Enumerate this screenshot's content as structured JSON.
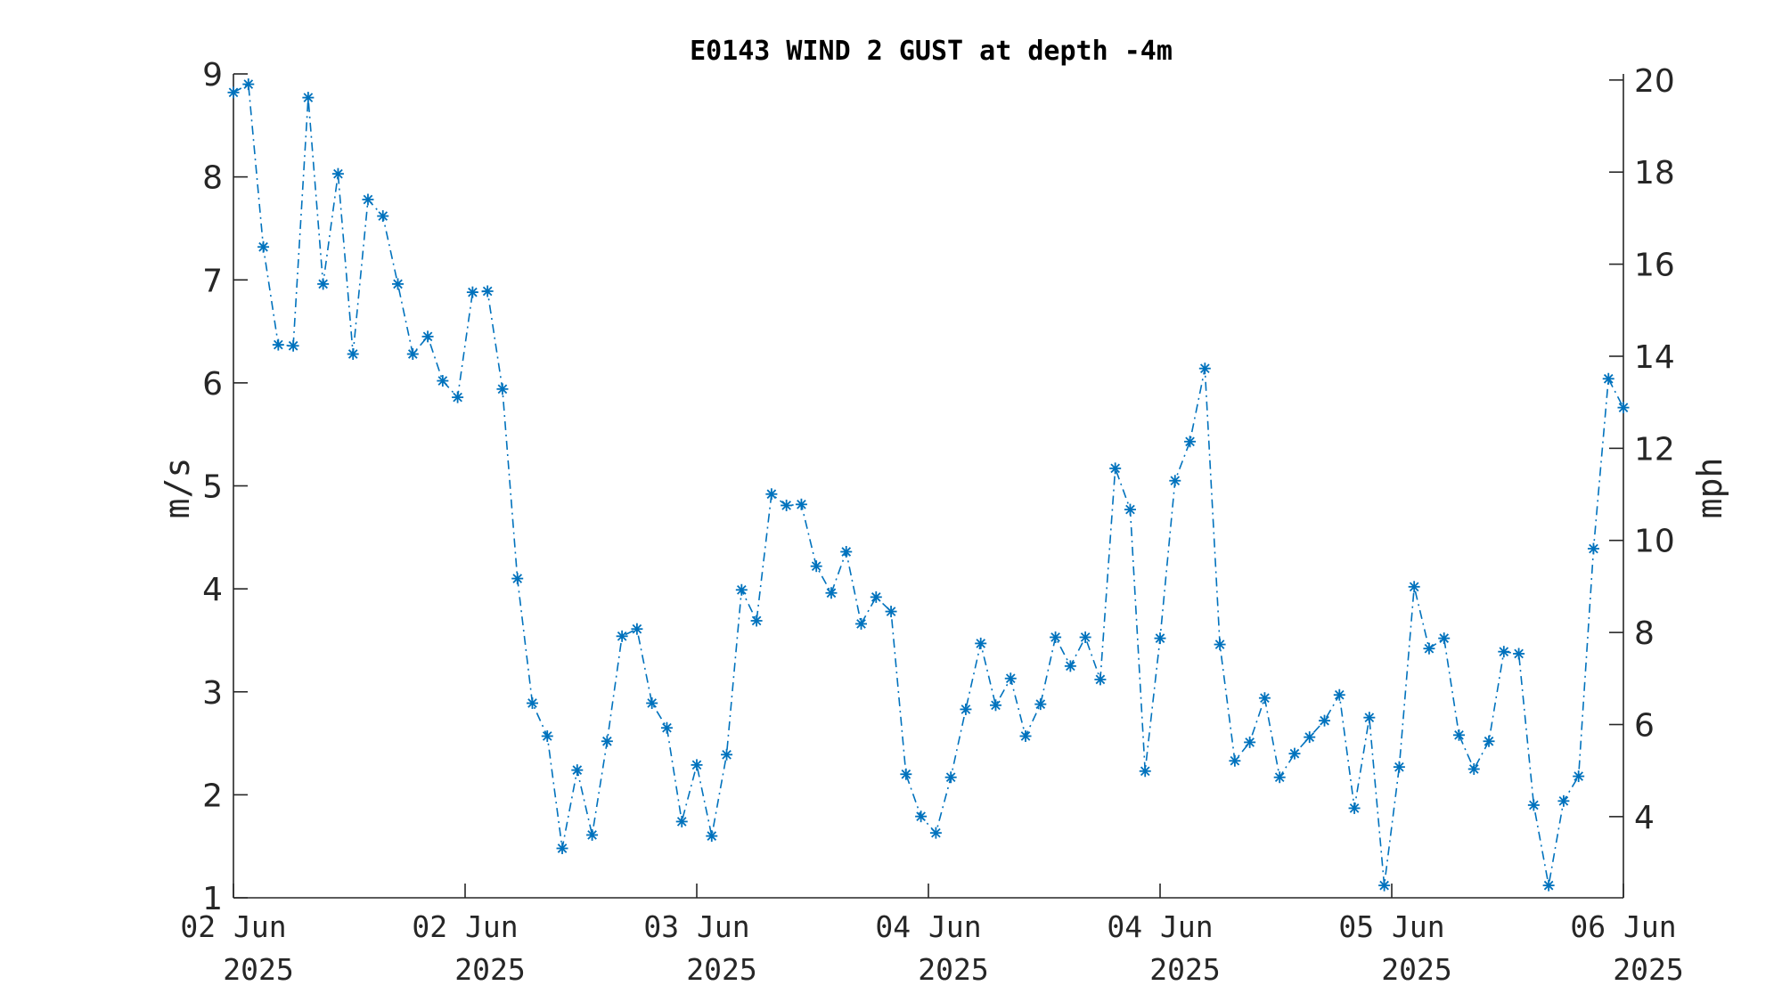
{
  "chart_data": {
    "type": "line",
    "title": "E0143 WIND 2 GUST at depth -4m",
    "ylabel_left": "m/s",
    "ylabel_right": "mph",
    "ylim": [
      1,
      9
    ],
    "yticks_left": [
      1,
      2,
      3,
      4,
      5,
      6,
      7,
      8,
      9
    ],
    "yticks_right": [
      4,
      6,
      8,
      10,
      12,
      14,
      16,
      18,
      20
    ],
    "xticks": [
      {
        "line1": "02 Jun",
        "line2": "2025"
      },
      {
        "line1": "02 Jun",
        "line2": "2025"
      },
      {
        "line1": "03 Jun",
        "line2": "2025"
      },
      {
        "line1": "04 Jun",
        "line2": "2025"
      },
      {
        "line1": "04 Jun",
        "line2": "2025"
      },
      {
        "line1": "05 Jun",
        "line2": "2025"
      },
      {
        "line1": "06 Jun",
        "line2": "2025"
      }
    ],
    "colors": {
      "series": "#0072BD",
      "axis": "#262626"
    },
    "marker": "asterisk",
    "line_style": "dash-dot",
    "series": [
      {
        "values": [
          8.82,
          8.9,
          7.32,
          6.37,
          6.36,
          8.77,
          6.96,
          8.03,
          6.28,
          7.78,
          7.62,
          6.96,
          6.28,
          6.45,
          6.02,
          5.86,
          6.88,
          6.89,
          5.94,
          4.1,
          2.89,
          2.57,
          1.48,
          2.24,
          1.61,
          2.52,
          3.54,
          3.61,
          2.89,
          2.65,
          1.74,
          2.29,
          1.6,
          2.39,
          3.99,
          3.69,
          4.92,
          4.81,
          4.82,
          4.22,
          3.96,
          4.36,
          3.66,
          3.92,
          3.78,
          2.2,
          1.79,
          1.63,
          2.17,
          2.83,
          3.47,
          2.87,
          3.13,
          2.57,
          2.88,
          3.53,
          3.25,
          3.53,
          3.12,
          5.17,
          4.77,
          2.23,
          3.52,
          5.05,
          5.43,
          6.14,
          3.46,
          2.33,
          2.51,
          2.94,
          2.17,
          2.4,
          2.56,
          2.72,
          2.97,
          1.87,
          2.75,
          1.12,
          2.27,
          4.02,
          3.42,
          3.52,
          2.58,
          2.25,
          2.52,
          3.39,
          3.37,
          1.9,
          1.12,
          1.94,
          2.18,
          4.39,
          6.04,
          5.76
        ]
      }
    ]
  }
}
